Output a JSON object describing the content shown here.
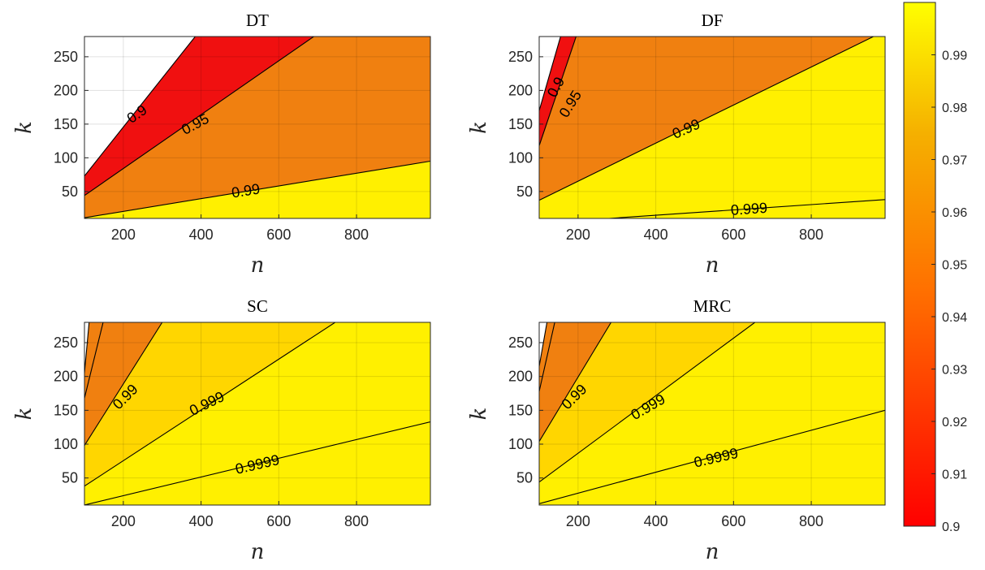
{
  "chart_data": [
    {
      "type": "contour",
      "title": "DT",
      "xlabel": "n",
      "ylabel": "k",
      "xlim": [
        100,
        990
      ],
      "ylim": [
        10,
        280
      ],
      "xticks": [
        200,
        400,
        600,
        800
      ],
      "yticks": [
        50,
        100,
        150,
        200,
        250
      ],
      "grid": true,
      "missing_region_color": "#ffffff",
      "levels": [
        {
          "level": 0.9,
          "label": "0.9",
          "line": [
            [
              100,
              73
            ],
            [
              385,
              280
            ]
          ],
          "label_at": [
            235,
            165
          ],
          "label_angle": -35
        },
        {
          "level": 0.95,
          "label": "0.95",
          "line": [
            [
              100,
              44
            ],
            [
              690,
              280
            ]
          ],
          "label_at": [
            385,
            150
          ],
          "label_angle": -28
        },
        {
          "level": 0.99,
          "label": "0.99",
          "line": [
            [
              100,
              11
            ],
            [
              990,
              95
            ]
          ],
          "label_at": [
            515,
            51
          ],
          "label_angle": -9
        }
      ],
      "bands": [
        {
          "range": "<0.9",
          "color": "#ffffff"
        },
        {
          "range": "0.9-0.95",
          "color": "#f01010"
        },
        {
          "range": "0.95-0.99",
          "color": "#f08010"
        },
        {
          "range": ">0.99",
          "color": "#fff000"
        }
      ]
    },
    {
      "type": "contour",
      "title": "DF",
      "xlabel": "n",
      "ylabel": "k",
      "xlim": [
        100,
        990
      ],
      "ylim": [
        10,
        280
      ],
      "xticks": [
        200,
        400,
        600,
        800
      ],
      "yticks": [
        50,
        100,
        150,
        200,
        250
      ],
      "grid": true,
      "missing_region_color": "#ffffff",
      "levels": [
        {
          "level": 0.9,
          "label": "0.9",
          "line": [
            [
              100,
              170
            ],
            [
              155,
              280
            ]
          ],
          "label_at": [
            143,
            205
          ],
          "label_angle": -62
        },
        {
          "level": 0.95,
          "label": "0.95",
          "line": [
            [
              100,
              118
            ],
            [
              195,
              280
            ]
          ],
          "label_at": [
            180,
            180
          ],
          "label_angle": -58
        },
        {
          "level": 0.99,
          "label": "0.99",
          "line": [
            [
              100,
              37
            ],
            [
              960,
              280
            ]
          ],
          "label_at": [
            478,
            143
          ],
          "label_angle": -24
        },
        {
          "level": 0.999,
          "label": "0.999",
          "line": [
            [
              280,
              10
            ],
            [
              990,
              38
            ]
          ],
          "label_at": [
            640,
            24
          ],
          "label_angle": -4
        }
      ],
      "bands": [
        {
          "range": "<0.9",
          "color": "#ffffff"
        },
        {
          "range": "0.9-0.95",
          "color": "#f01010"
        },
        {
          "range": "0.95-0.99",
          "color": "#f08010"
        },
        {
          "range": ">0.99",
          "color": "#fff000"
        }
      ]
    },
    {
      "type": "contour",
      "title": "SC",
      "xlabel": "n",
      "ylabel": "k",
      "xlim": [
        100,
        990
      ],
      "ylim": [
        10,
        280
      ],
      "xticks": [
        200,
        400,
        600,
        800
      ],
      "yticks": [
        50,
        100,
        150,
        200,
        250
      ],
      "grid": true,
      "missing_region_color": "#ffffff",
      "levels": [
        {
          "level": 0.9,
          "label": "",
          "line": [
            [
              100,
              168
            ],
            [
              148,
              280
            ]
          ]
        },
        {
          "level": 0.95,
          "label": "",
          "line": [
            [
              100,
              205
            ],
            [
              112,
              280
            ]
          ]
        },
        {
          "level": 0.99,
          "label": "0.99",
          "line": [
            [
              100,
              98
            ],
            [
              300,
              280
            ]
          ],
          "label_at": [
            205,
            170
          ],
          "label_angle": -45
        },
        {
          "level": 0.999,
          "label": "0.999",
          "line": [
            [
              100,
              38
            ],
            [
              745,
              280
            ]
          ],
          "label_at": [
            415,
            160
          ],
          "label_angle": -26
        },
        {
          "level": 0.9999,
          "label": "0.9999",
          "line": [
            [
              100,
              10
            ],
            [
              990,
              133
            ]
          ],
          "label_at": [
            545,
            70
          ],
          "label_angle": -13
        }
      ],
      "bands": [
        {
          "range": "<0.95",
          "color": "#f01010"
        },
        {
          "range": "0.95-0.99",
          "color": "#f08010"
        },
        {
          "range": "0.99-0.999",
          "color": "#ffd600"
        },
        {
          "range": ">0.999",
          "color": "#fff000"
        }
      ]
    },
    {
      "type": "contour",
      "title": "MRC",
      "xlabel": "n",
      "ylabel": "k",
      "xlim": [
        100,
        990
      ],
      "ylim": [
        10,
        280
      ],
      "xticks": [
        200,
        400,
        600,
        800
      ],
      "yticks": [
        50,
        100,
        150,
        200,
        250
      ],
      "grid": true,
      "missing_region_color": "#ffffff",
      "levels": [
        {
          "level": 0.9,
          "label": "",
          "line": [
            [
              100,
              178
            ],
            [
              140,
              280
            ]
          ]
        },
        {
          "level": 0.95,
          "label": "",
          "line": [
            [
              100,
              215
            ],
            [
              120,
              280
            ]
          ]
        },
        {
          "level": 0.99,
          "label": "0.99",
          "line": [
            [
              100,
              104
            ],
            [
              285,
              280
            ]
          ],
          "label_at": [
            190,
            170
          ],
          "label_angle": -45
        },
        {
          "level": 0.999,
          "label": "0.999",
          "line": [
            [
              100,
              44
            ],
            [
              655,
              280
            ]
          ],
          "label_at": [
            380,
            155
          ],
          "label_angle": -30
        },
        {
          "level": 0.9999,
          "label": "0.9999",
          "line": [
            [
              100,
              12
            ],
            [
              990,
              150
            ]
          ],
          "label_at": [
            555,
            80
          ],
          "label_angle": -13
        }
      ],
      "bands": [
        {
          "range": "<0.95",
          "color": "#f01010"
        },
        {
          "range": "0.95-0.99",
          "color": "#f08010"
        },
        {
          "range": "0.99-0.999",
          "color": "#ffd600"
        },
        {
          "range": ">0.999",
          "color": "#fff000"
        }
      ]
    }
  ],
  "colorbar": {
    "range": [
      0.9,
      1.0
    ],
    "ticks": [
      "0.9",
      "0.91",
      "0.92",
      "0.93",
      "0.94",
      "0.95",
      "0.96",
      "0.97",
      "0.98",
      "0.99"
    ],
    "tick_values": [
      0.9,
      0.91,
      0.92,
      0.93,
      0.94,
      0.95,
      0.96,
      0.97,
      0.98,
      0.99
    ],
    "colormap": [
      "#ff0000",
      "#ff7000",
      "#f0b000",
      "#ffff00"
    ]
  }
}
